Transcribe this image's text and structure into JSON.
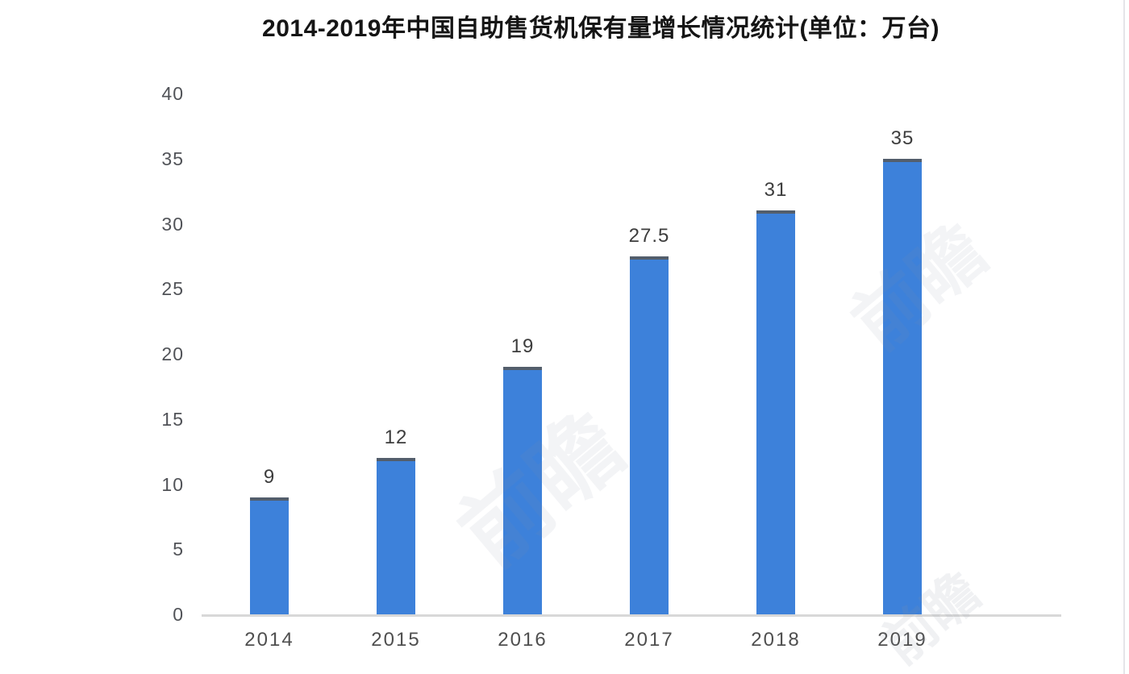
{
  "title": "2014-2019年中国自助售货机保有量增长情况统计(单位：万台)",
  "watermark": "前瞻",
  "chart_data": {
    "type": "bar",
    "title": "2014-2019年中国自助售货机保有量增长情况统计(单位：万台)",
    "categories": [
      "2014",
      "2015",
      "2016",
      "2017",
      "2018",
      "2019"
    ],
    "values": [
      9,
      12,
      19,
      27.5,
      31,
      35
    ],
    "value_labels": [
      "9",
      "12",
      "19",
      "27.5",
      "31",
      "35"
    ],
    "xlabel": "",
    "ylabel": "",
    "unit": "万台",
    "ylim": [
      0,
      40
    ],
    "yticks": [
      0,
      5,
      10,
      15,
      20,
      25,
      30,
      35,
      40
    ],
    "grid": false,
    "legend": null,
    "colors": {
      "bar": "#3d81da",
      "bar_top_edge": "#535e6c",
      "axis_line": "#d8d8d8",
      "ytick_label": "#515358",
      "xtick_label": "#4f4f4f",
      "value_label": "#3d3d3d",
      "title": "#151515",
      "background": "#ffffff"
    }
  }
}
